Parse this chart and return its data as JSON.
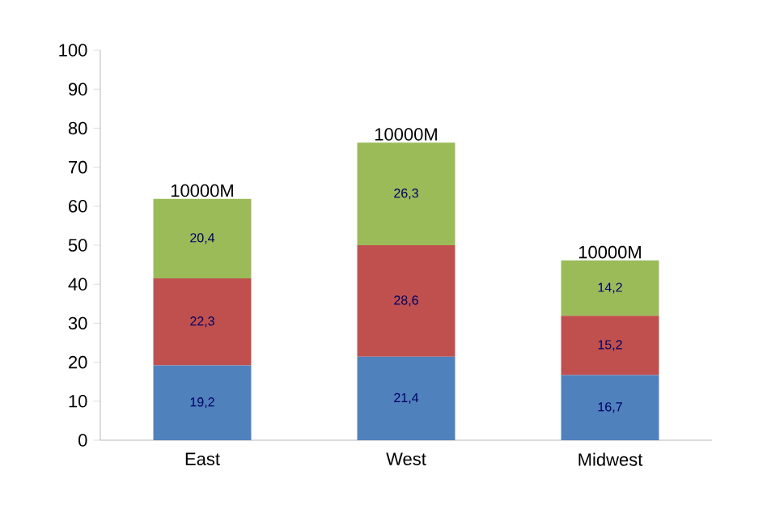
{
  "chart_data": {
    "type": "bar",
    "stacked": true,
    "categories": [
      "East",
      "West",
      "Midwest"
    ],
    "series": [
      {
        "color": "#4f81bd",
        "values": [
          19.2,
          21.4,
          16.7
        ],
        "value_labels": [
          "19,2",
          "21,4",
          "16,7"
        ]
      },
      {
        "color": "#c0504d",
        "values": [
          22.3,
          28.6,
          15.2
        ],
        "value_labels": [
          "22,3",
          "28,6",
          "15,2"
        ]
      },
      {
        "color": "#9bbb59",
        "values": [
          20.4,
          26.3,
          14.2
        ],
        "value_labels": [
          "20,4",
          "26,3",
          "14,2"
        ]
      }
    ],
    "annotations": [
      {
        "text": "10000M",
        "x": "East",
        "y": 61.9
      },
      {
        "text": "10000M",
        "x": "West",
        "y": 76.3
      },
      {
        "text": "10000M",
        "x": "Midwest",
        "y": 46.1
      }
    ],
    "ylim": [
      0,
      100
    ],
    "yticks": [
      0,
      10,
      20,
      30,
      40,
      50,
      60,
      70,
      80,
      90,
      100
    ]
  }
}
